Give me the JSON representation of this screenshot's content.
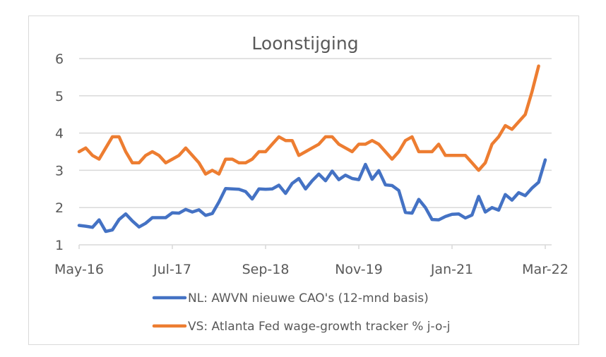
{
  "chart_data": {
    "type": "line",
    "title": "Loonstijging",
    "xlabel": "",
    "ylabel": "",
    "ylim": [
      1,
      6
    ],
    "yticks": [
      "1",
      "2",
      "3",
      "4",
      "5",
      "6"
    ],
    "ytick_values": [
      1,
      2,
      3,
      4,
      5,
      6
    ],
    "grid": "horizontal",
    "legend_position": "bottom",
    "x_start": "May-16",
    "x_end": "Mar-22",
    "x_frequency": "monthly",
    "xtick_labels": [
      "May-16",
      "Jul-17",
      "Sep-18",
      "Nov-19",
      "Jan-21",
      "Mar-22"
    ],
    "xtick_indices": [
      0,
      14,
      28,
      42,
      56,
      70
    ],
    "series": [
      {
        "name": "NL: AWVN nieuwe CAO's (12-mnd basis)",
        "color": "#4472c4",
        "values": [
          1.52,
          1.5,
          1.47,
          1.67,
          1.36,
          1.4,
          1.68,
          1.83,
          1.64,
          1.48,
          1.58,
          1.73,
          1.73,
          1.73,
          1.86,
          1.85,
          1.95,
          1.88,
          1.94,
          1.79,
          1.84,
          2.15,
          2.51,
          2.5,
          2.49,
          2.43,
          2.23,
          2.5,
          2.49,
          2.5,
          2.6,
          2.38,
          2.65,
          2.78,
          2.5,
          2.72,
          2.9,
          2.72,
          2.98,
          2.75,
          2.87,
          2.78,
          2.75,
          3.16,
          2.76,
          2.99,
          2.61,
          2.59,
          2.46,
          1.87,
          1.85,
          2.22,
          2.0,
          1.68,
          1.67,
          1.76,
          1.82,
          1.83,
          1.72,
          1.8,
          2.3,
          1.88,
          2.0,
          1.93,
          2.35,
          2.2,
          2.4,
          2.32,
          2.52,
          2.68,
          3.28
        ]
      },
      {
        "name": "VS: Atlanta Fed wage-growth tracker % j-o-j",
        "color": "#ed7d31",
        "values": [
          3.5,
          3.6,
          3.4,
          3.3,
          3.6,
          3.9,
          3.9,
          3.5,
          3.2,
          3.2,
          3.4,
          3.5,
          3.4,
          3.2,
          3.3,
          3.4,
          3.6,
          3.4,
          3.2,
          2.9,
          3.0,
          2.9,
          3.3,
          3.3,
          3.2,
          3.2,
          3.3,
          3.5,
          3.5,
          3.7,
          3.9,
          3.8,
          3.8,
          3.4,
          3.5,
          3.6,
          3.7,
          3.9,
          3.9,
          3.7,
          3.6,
          3.5,
          3.7,
          3.7,
          3.8,
          3.7,
          3.5,
          3.3,
          3.5,
          3.8,
          3.9,
          3.5,
          3.5,
          3.5,
          3.7,
          3.4,
          3.4,
          3.4,
          3.4,
          3.2,
          3.0,
          3.2,
          3.7,
          3.9,
          4.2,
          4.1,
          4.3,
          4.5,
          5.1,
          5.8
        ]
      }
    ]
  }
}
